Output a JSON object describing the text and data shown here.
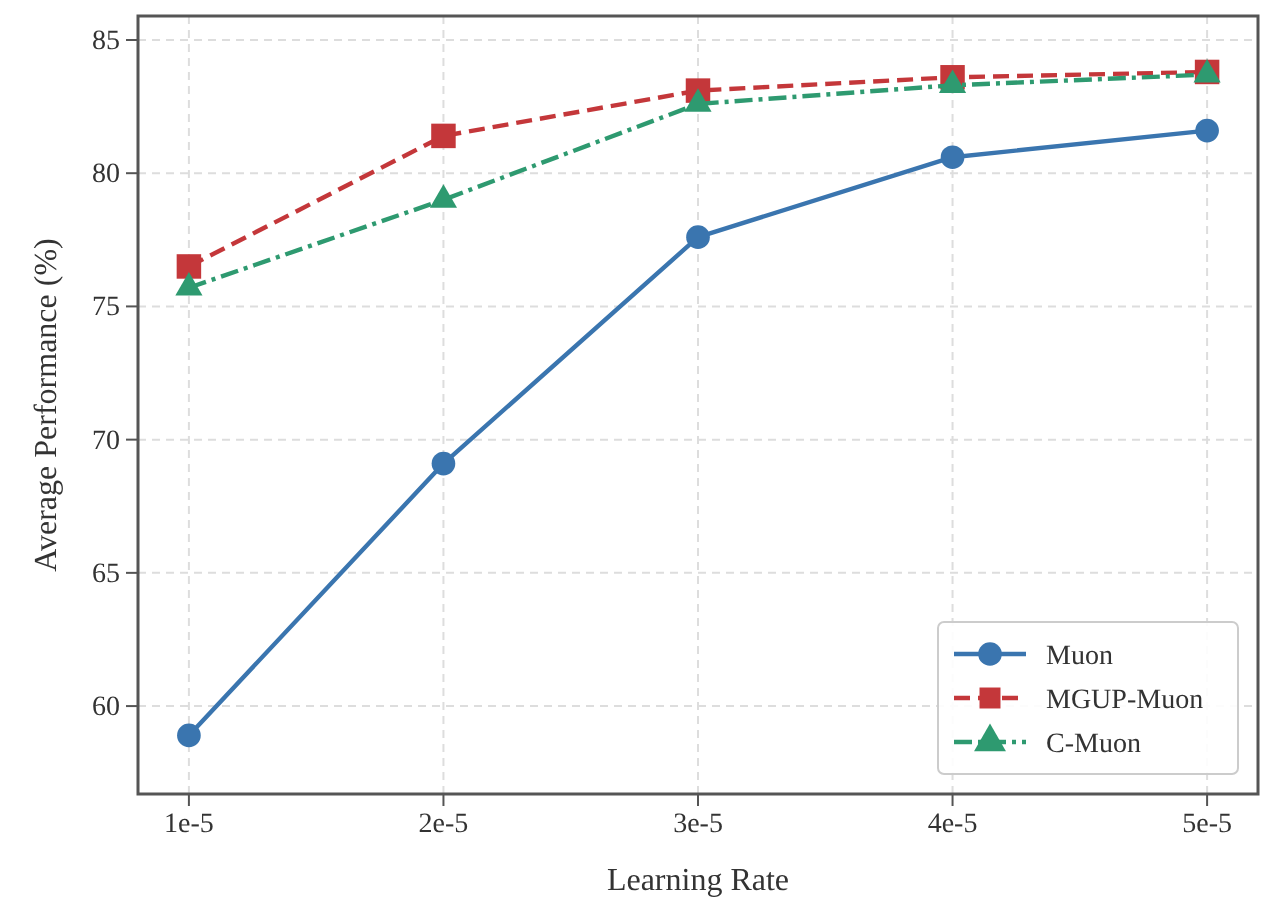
{
  "chart_data": {
    "type": "line",
    "xlabel": "Learning Rate",
    "ylabel": "Average Performance (%)",
    "categories": [
      "1e-5",
      "2e-5",
      "3e-5",
      "4e-5",
      "5e-5"
    ],
    "series": [
      {
        "name": "Muon",
        "color": "#3a75af",
        "marker": "circle",
        "line_style": "solid",
        "values": [
          58.9,
          69.1,
          77.6,
          80.6,
          81.6
        ]
      },
      {
        "name": "MGUP-Muon",
        "color": "#c4373a",
        "marker": "square",
        "line_style": "dashed",
        "values": [
          76.5,
          81.4,
          83.1,
          83.6,
          83.8
        ]
      },
      {
        "name": "C-Muon",
        "color": "#2e9a70",
        "marker": "triangle",
        "line_style": "dashdot",
        "values": [
          75.7,
          79.0,
          82.6,
          83.3,
          83.7
        ]
      }
    ],
    "ylim": [
      56.7,
      85.9
    ],
    "yticks": [
      60,
      65,
      70,
      75,
      80,
      85
    ],
    "grid": true,
    "legend": "bottom right"
  }
}
